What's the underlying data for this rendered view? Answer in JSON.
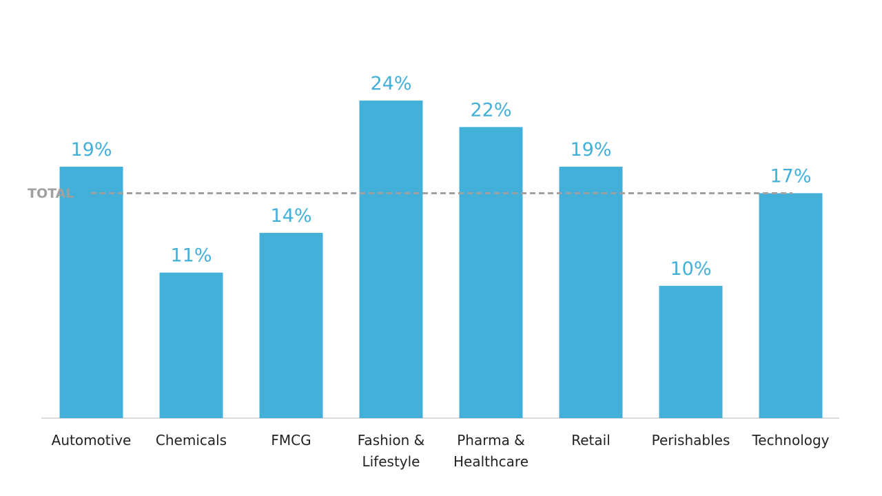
{
  "chart_data": {
    "type": "bar",
    "categories": [
      "Automotive",
      "Chemicals",
      "FMCG",
      "Fashion & Lifestyle",
      "Pharma & Healthcare",
      "Retail",
      "Perishables",
      "Technology"
    ],
    "values": [
      19,
      11,
      14,
      24,
      22,
      19,
      10,
      17
    ],
    "value_labels": [
      "19%",
      "11%",
      "14%",
      "24%",
      "22%",
      "19%",
      "10%",
      "17%"
    ],
    "color": "#42b0d8",
    "reference_line": {
      "label": "TOTAL",
      "value": 17,
      "color": "#a0a0a0"
    }
  }
}
